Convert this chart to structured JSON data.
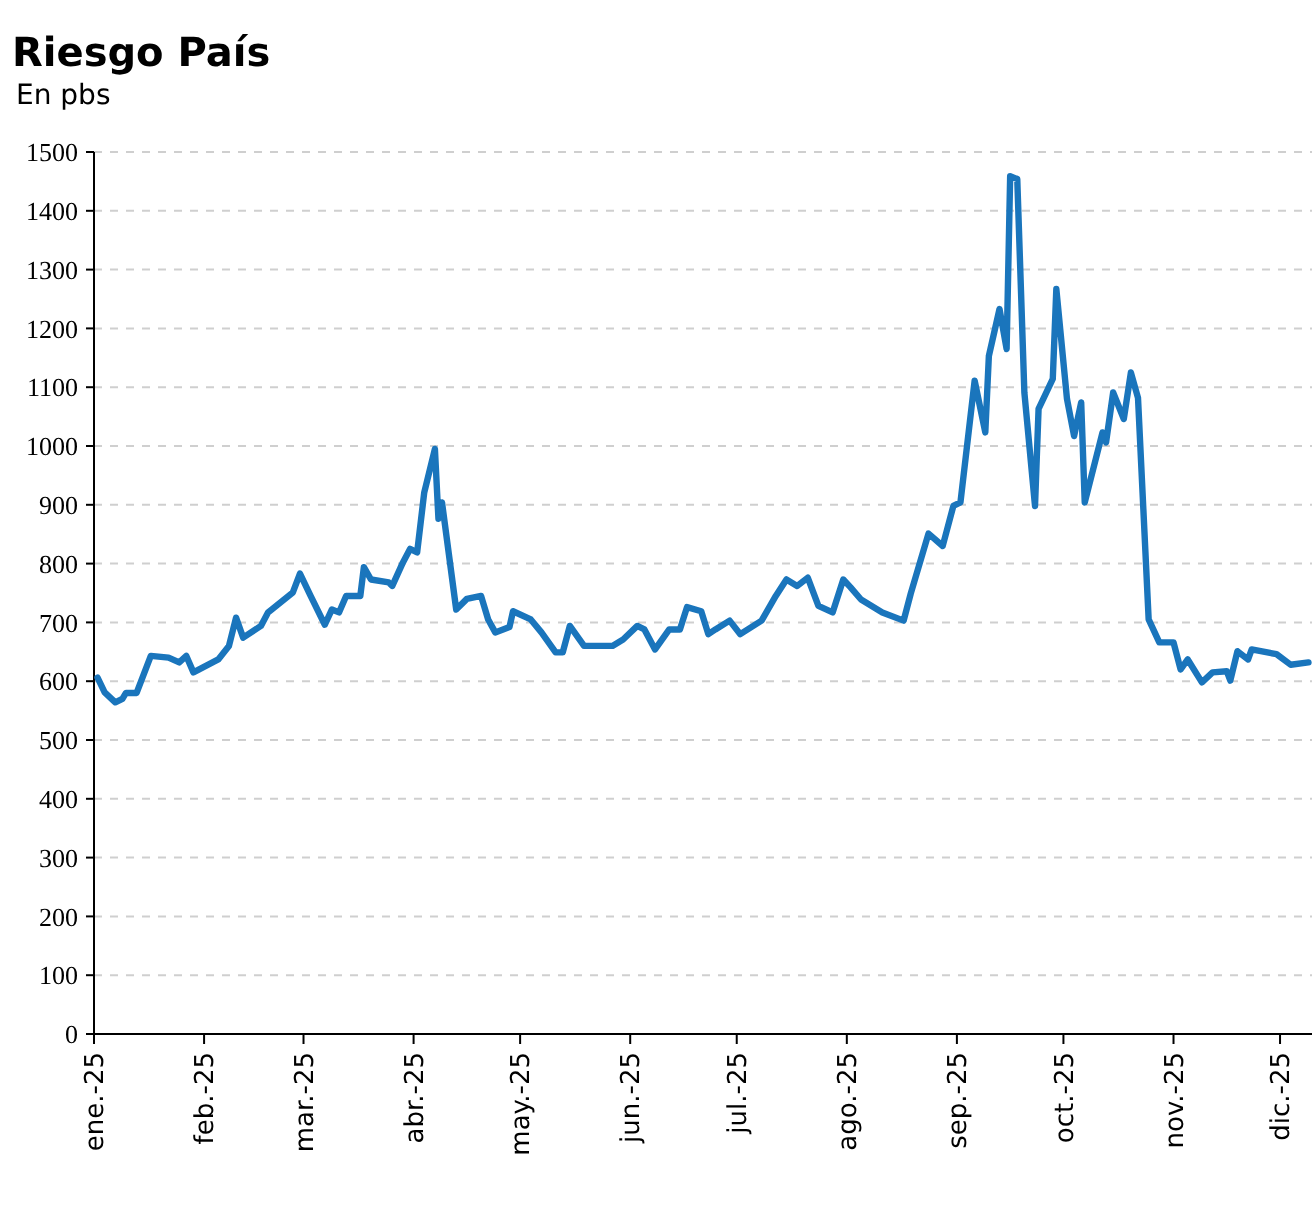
{
  "chart_data": {
    "type": "line",
    "title": "Riesgo País",
    "subtitle": "En pbs",
    "x": [
      "2025-01-02",
      "2025-01-04",
      "2025-01-07",
      "2025-01-09",
      "2025-01-10",
      "2025-01-13",
      "2025-01-17",
      "2025-01-22",
      "2025-01-25",
      "2025-01-27",
      "2025-01-29",
      "2025-02-05",
      "2025-02-08",
      "2025-02-10",
      "2025-02-12",
      "2025-02-17",
      "2025-02-19",
      "2025-02-26",
      "2025-02-28",
      "2025-03-03",
      "2025-03-07",
      "2025-03-09",
      "2025-03-11",
      "2025-03-13",
      "2025-03-17",
      "2025-03-18",
      "2025-03-20",
      "2025-03-25",
      "2025-03-26",
      "2025-03-29",
      "2025-03-31",
      "2025-04-02",
      "2025-04-04",
      "2025-04-07",
      "2025-04-08",
      "2025-04-09",
      "2025-04-13",
      "2025-04-16",
      "2025-04-20",
      "2025-04-22",
      "2025-04-24",
      "2025-04-28",
      "2025-04-29",
      "2025-05-04",
      "2025-05-07",
      "2025-05-11",
      "2025-05-13",
      "2025-05-15",
      "2025-05-19",
      "2025-05-27",
      "2025-05-30",
      "2025-06-03",
      "2025-06-05",
      "2025-06-08",
      "2025-06-12",
      "2025-06-15",
      "2025-06-17",
      "2025-06-21",
      "2025-06-23",
      "2025-06-25",
      "2025-06-29",
      "2025-07-02",
      "2025-07-08",
      "2025-07-12",
      "2025-07-15",
      "2025-07-18",
      "2025-07-21",
      "2025-07-24",
      "2025-07-28",
      "2025-07-31",
      "2025-08-02",
      "2025-08-05",
      "2025-08-11",
      "2025-08-17",
      "2025-08-19",
      "2025-08-24",
      "2025-08-28",
      "2025-08-31",
      "2025-09-02",
      "2025-09-06",
      "2025-09-09",
      "2025-09-10",
      "2025-09-13",
      "2025-09-15",
      "2025-09-16",
      "2025-09-18",
      "2025-09-20",
      "2025-09-23",
      "2025-09-24",
      "2025-09-28",
      "2025-09-29",
      "2025-10-02",
      "2025-10-04",
      "2025-10-06",
      "2025-10-07",
      "2025-10-12",
      "2025-10-13",
      "2025-10-15",
      "2025-10-18",
      "2025-10-20",
      "2025-10-22",
      "2025-10-25",
      "2025-10-28",
      "2025-11-01",
      "2025-11-03",
      "2025-11-05",
      "2025-11-09",
      "2025-11-12",
      "2025-11-16",
      "2025-11-17",
      "2025-11-19",
      "2025-11-22",
      "2025-11-23",
      "2025-11-30",
      "2025-12-04",
      "2025-12-09"
    ],
    "series": [
      {
        "color": "#1a75bc",
        "values": [
          606,
          581,
          564,
          570,
          580,
          580,
          643,
          640,
          632,
          643,
          615,
          637,
          660,
          708,
          674,
          694,
          717,
          751,
          783,
          745,
          696,
          722,
          717,
          745,
          745,
          794,
          773,
          768,
          762,
          802,
          825,
          819,
          921,
          995,
          876,
          904,
          722,
          740,
          745,
          705,
          683,
          692,
          719,
          705,
          683,
          649,
          649,
          694,
          660,
          660,
          671,
          694,
          688,
          654,
          688,
          688,
          726,
          719,
          680,
          688,
          703,
          680,
          703,
          745,
          773,
          762,
          776,
          728,
          717,
          773,
          760,
          739,
          717,
          703,
          749,
          851,
          830,
          898,
          904,
          1111,
          1023,
          1153,
          1233,
          1165,
          1459,
          1454,
          1091,
          898,
          1063,
          1114,
          1267,
          1080,
          1017,
          1074,
          904,
          1023,
          1006,
          1091,
          1046,
          1125,
          1082,
          705,
          666,
          666,
          620,
          637,
          598,
          615,
          617,
          601,
          651,
          637,
          654,
          646,
          628,
          632
        ]
      }
    ],
    "xlim": [
      "2025-01-01",
      "2025-12-10"
    ],
    "xticks": [
      {
        "value": "2025-01-01",
        "label": "ene.-25"
      },
      {
        "value": "2025-02-01",
        "label": "feb.-25"
      },
      {
        "value": "2025-03-01",
        "label": "mar.-25"
      },
      {
        "value": "2025-04-01",
        "label": "abr.-25"
      },
      {
        "value": "2025-05-01",
        "label": "may.-25"
      },
      {
        "value": "2025-06-01",
        "label": "jun.-25"
      },
      {
        "value": "2025-07-01",
        "label": "jul.-25"
      },
      {
        "value": "2025-08-01",
        "label": "ago.-25"
      },
      {
        "value": "2025-09-01",
        "label": "sep.-25"
      },
      {
        "value": "2025-10-01",
        "label": "oct.-25"
      },
      {
        "value": "2025-11-01",
        "label": "nov.-25"
      },
      {
        "value": "2025-12-01",
        "label": "dic.-25"
      }
    ],
    "ylim": [
      0,
      1500
    ],
    "yticks": [
      0,
      100,
      200,
      300,
      400,
      500,
      600,
      700,
      800,
      900,
      1000,
      1100,
      1200,
      1300,
      1400,
      1500
    ],
    "grid": "y",
    "marker": "none",
    "line_style": "solid"
  }
}
